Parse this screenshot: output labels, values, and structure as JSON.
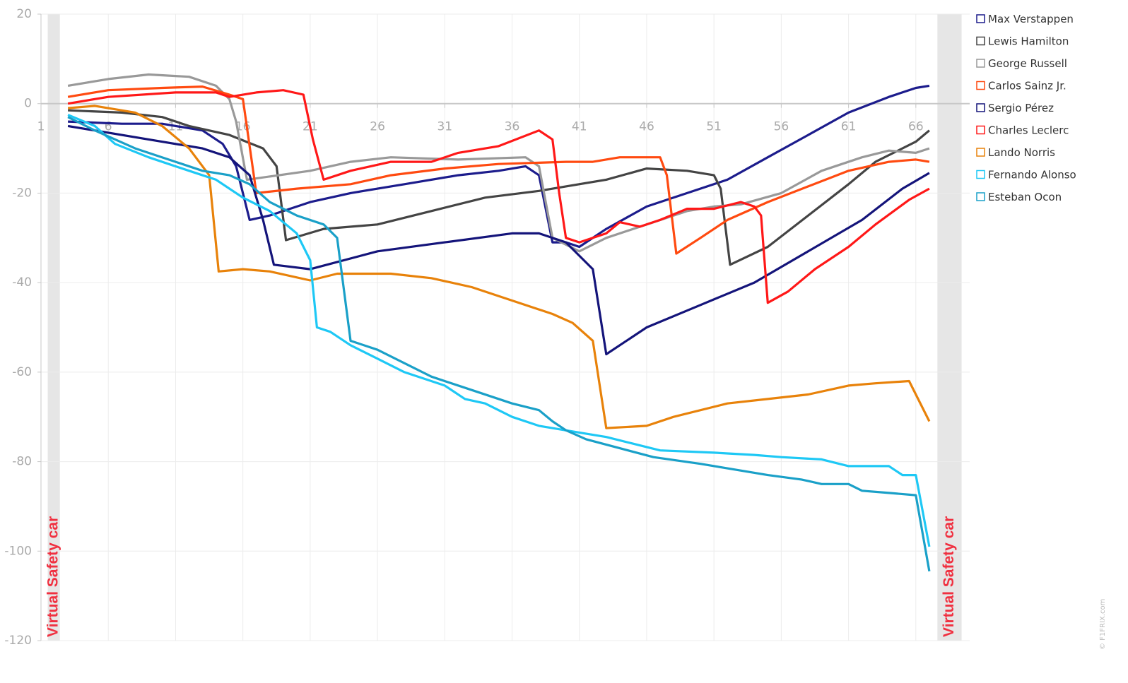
{
  "chart_data": {
    "type": "line",
    "xlim": [
      1,
      70
    ],
    "ylim": [
      -120,
      20
    ],
    "xticks": [
      1,
      6,
      11,
      16,
      21,
      26,
      31,
      36,
      41,
      46,
      51,
      56,
      61,
      66
    ],
    "yticks": [
      20,
      0,
      -20,
      -40,
      -60,
      -80,
      -100,
      -120
    ],
    "grid": true,
    "annotations": [
      {
        "text": "Virtual Safety car",
        "x_start": 1.5,
        "x_end": 2.4
      },
      {
        "text": "Virtual Safety car",
        "x_start": 67.6,
        "x_end": 69.4
      }
    ],
    "credit": "© F1FRIX.com",
    "series": [
      {
        "name": "Max Verstappen",
        "color": "#1c1c8c",
        "x": [
          3,
          7,
          10,
          13,
          14.5,
          15.5,
          16.5,
          18,
          21,
          24,
          28,
          32,
          35,
          37,
          38,
          39,
          40,
          41,
          43,
          46,
          49,
          52,
          55,
          58,
          61,
          64,
          66,
          67
        ],
        "values": [
          -4,
          -4.5,
          -4.5,
          -6,
          -9,
          -14,
          -26,
          -25,
          -22,
          -20,
          -18,
          -16,
          -15,
          -14,
          -16,
          -31,
          -31,
          -32,
          -28,
          -23,
          -20,
          -17,
          -12,
          -7,
          -2,
          1.5,
          3.5,
          4
        ]
      },
      {
        "name": "Lewis Hamilton",
        "color": "#444444",
        "x": [
          3,
          7,
          10,
          12,
          15,
          17.5,
          18.5,
          19.2,
          22,
          26,
          30,
          34,
          38,
          40,
          43,
          46,
          49,
          51,
          51.5,
          52.2,
          55,
          58,
          61,
          63,
          66,
          67
        ],
        "values": [
          -1.5,
          -2,
          -3,
          -5,
          -7,
          -10,
          -14,
          -30.5,
          -28,
          -27,
          -24,
          -21,
          -19.5,
          -18.5,
          -17,
          -14.5,
          -15,
          -16,
          -19,
          -36,
          -32,
          -25,
          -18,
          -13,
          -8.5,
          -6
        ]
      },
      {
        "name": "George Russell",
        "color": "#999999",
        "x": [
          3,
          6,
          9,
          12,
          14,
          15,
          15.5,
          16.3,
          21,
          24,
          27,
          32,
          37,
          38,
          39,
          41,
          43,
          46,
          49,
          51,
          53,
          56,
          59,
          62,
          64,
          66,
          67
        ],
        "values": [
          4,
          5.5,
          6.5,
          6,
          4,
          1,
          -4,
          -17,
          -15,
          -13,
          -12,
          -12.5,
          -12,
          -14,
          -30,
          -33,
          -30,
          -27,
          -24,
          -23,
          -22.5,
          -20,
          -15,
          -12,
          -10.5,
          -11,
          -10
        ]
      },
      {
        "name": "Carlos Sainz Jr.",
        "color": "#ff4a10",
        "x": [
          3,
          6,
          10,
          13,
          15,
          16,
          17,
          20,
          24,
          27,
          31,
          35,
          40,
          42,
          44,
          47,
          47.5,
          48.2,
          50,
          52,
          55,
          58,
          61,
          64,
          66,
          67
        ],
        "values": [
          1.5,
          3,
          3.5,
          3.8,
          2,
          1,
          -20,
          -19,
          -18,
          -16,
          -14.5,
          -13.5,
          -13,
          -13,
          -12,
          -12,
          -16,
          -33.5,
          -30,
          -26,
          -22,
          -18.5,
          -15,
          -13,
          -12.5,
          -13
        ]
      },
      {
        "name": "Sergio Pérez",
        "color": "#14147a",
        "x": [
          3,
          9,
          13,
          15,
          16.5,
          17.5,
          18.3,
          21,
          26,
          31,
          36,
          38,
          40,
          42,
          43,
          46,
          50,
          54,
          58,
          62,
          65,
          67
        ],
        "values": [
          -5,
          -8,
          -10,
          -12,
          -16,
          -26,
          -36,
          -37,
          -33,
          -31,
          -29,
          -29,
          -31,
          -37,
          -56,
          -50,
          -45,
          -40,
          -33,
          -26,
          -19,
          -15.5
        ]
      },
      {
        "name": "Charles Leclerc",
        "color": "#ff1818",
        "x": [
          3,
          6,
          11,
          14,
          15,
          17,
          19,
          20.5,
          21.2,
          22,
          24,
          27,
          30,
          32,
          35,
          38,
          39,
          39.5,
          40,
          41,
          43,
          44,
          45.5,
          47,
          49,
          51,
          53,
          54,
          54.5,
          55,
          56.5,
          58.5,
          61,
          63,
          65.5,
          67
        ],
        "values": [
          0,
          1.5,
          2.5,
          2.5,
          1.5,
          2.5,
          3,
          2,
          -8,
          -17,
          -15,
          -13,
          -13,
          -11,
          -9.5,
          -6,
          -8,
          -20,
          -30,
          -31,
          -29,
          -26.5,
          -27.5,
          -26,
          -23.5,
          -23.5,
          -22,
          -23,
          -25,
          -44.5,
          -42,
          -37,
          -32,
          -27,
          -21.5,
          -19
        ]
      },
      {
        "name": "Lando Norris",
        "color": "#e8820a",
        "x": [
          3,
          5,
          8,
          10,
          12,
          13.5,
          14.2,
          16,
          18,
          21,
          23,
          27,
          30,
          33,
          36,
          39,
          40.5,
          42,
          43,
          46,
          48,
          52,
          55,
          58,
          61,
          63,
          65.5,
          67
        ],
        "values": [
          -1,
          -0.5,
          -2,
          -5,
          -10,
          -16,
          -37.5,
          -37,
          -37.5,
          -39.5,
          -38,
          -38,
          -39,
          -41,
          -44,
          -47,
          -49,
          -53,
          -72.5,
          -72,
          -70,
          -67,
          -66,
          -65,
          -63,
          -62.5,
          -62,
          -71
        ]
      },
      {
        "name": "Fernando Alonso",
        "color": "#1ec8f5",
        "x": [
          3,
          5,
          6.5,
          9,
          12,
          14,
          16,
          18,
          20,
          21,
          21.5,
          22.5,
          24,
          26,
          28,
          31,
          32.5,
          34,
          36,
          38,
          41,
          43,
          45,
          47,
          51,
          54,
          56,
          59,
          61,
          64,
          65,
          66,
          67
        ],
        "values": [
          -2.5,
          -5,
          -9,
          -12,
          -15,
          -17,
          -21,
          -24,
          -29,
          -35,
          -50,
          -51,
          -54,
          -57,
          -60,
          -63,
          -66,
          -67,
          -70,
          -72,
          -73.5,
          -74.5,
          -76,
          -77.5,
          -78,
          -78.5,
          -79,
          -79.5,
          -81,
          -81,
          -83,
          -83,
          -99
        ]
      },
      {
        "name": "Esteban Ocon",
        "color": "#1aa0c8",
        "x": [
          3,
          5,
          8,
          11,
          13,
          15,
          16.5,
          18,
          20,
          22,
          23,
          24,
          26,
          28,
          30,
          33,
          36,
          38,
          39,
          40,
          41.5,
          44,
          46.5,
          50,
          52,
          55,
          57.5,
          59,
          61,
          62,
          64,
          66,
          67
        ],
        "values": [
          -3,
          -6,
          -10,
          -13,
          -15,
          -16,
          -18,
          -22,
          -25,
          -27,
          -30,
          -53,
          -55,
          -58,
          -61,
          -64,
          -67,
          -68.5,
          -71,
          -73,
          -75,
          -77,
          -79,
          -80.5,
          -81.5,
          -83,
          -84,
          -85,
          -85,
          -86.5,
          -87,
          -87.5,
          -104.5
        ]
      }
    ]
  }
}
